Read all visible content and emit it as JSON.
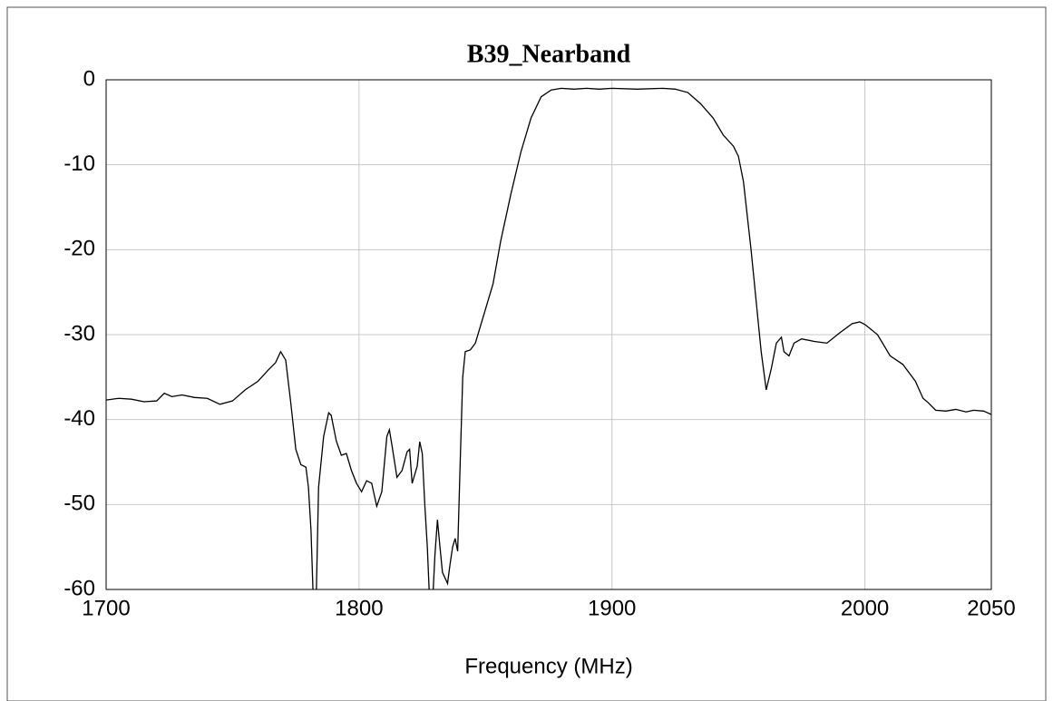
{
  "chart_data": {
    "type": "line",
    "title": "B39_Nearband",
    "x_label": "Frequency (MHz)",
    "xlim": [
      1700,
      2050
    ],
    "xticks": [
      1700,
      1800,
      1900,
      2000,
      2050
    ],
    "ylim": [
      -60,
      0
    ],
    "yticks": [
      0,
      -10,
      -20,
      -30,
      -40,
      -50,
      -60
    ],
    "grid": true,
    "x": [
      1700,
      1705,
      1710,
      1715,
      1720,
      1723,
      1726,
      1730,
      1735,
      1740,
      1745,
      1750,
      1755,
      1760,
      1764,
      1767,
      1769,
      1771,
      1773,
      1775,
      1777,
      1779,
      1780,
      1781,
      1782,
      1783,
      1784,
      1786,
      1788,
      1789,
      1791,
      1793,
      1795,
      1797,
      1799,
      1801,
      1803,
      1805,
      1807,
      1809,
      1811,
      1812,
      1813,
      1815,
      1817,
      1819,
      1820,
      1821,
      1823,
      1824,
      1825,
      1826,
      1827,
      1828,
      1829,
      1830,
      1831,
      1832,
      1833,
      1835,
      1836,
      1837,
      1838,
      1839,
      1840,
      1841,
      1842,
      1844,
      1846,
      1850,
      1853,
      1856,
      1860,
      1864,
      1868,
      1872,
      1876,
      1880,
      1885,
      1890,
      1895,
      1900,
      1910,
      1920,
      1925,
      1930,
      1935,
      1940,
      1944,
      1948,
      1950,
      1952,
      1955,
      1957,
      1959,
      1961,
      1963,
      1965,
      1967,
      1968,
      1970,
      1972,
      1975,
      1980,
      1985,
      1990,
      1995,
      1998,
      2000,
      2005,
      2010,
      2015,
      2020,
      2023,
      2025,
      2028,
      2032,
      2036,
      2040,
      2043,
      2047,
      2050
    ],
    "series": [
      {
        "name": "B39_Nearband",
        "color": "#000000",
        "values": [
          -37.7,
          -37.5,
          -37.6,
          -37.9,
          -37.8,
          -36.9,
          -37.3,
          -37.1,
          -37.4,
          -37.5,
          -38.2,
          -37.8,
          -36.5,
          -35.5,
          -34.2,
          -33.3,
          -32.0,
          -33,
          -38,
          -43.5,
          -45.3,
          -45.6,
          -48,
          -53,
          -62,
          -62,
          -48,
          -42,
          -39.2,
          -39.5,
          -42.5,
          -44.2,
          -44,
          -46,
          -47.5,
          -48.5,
          -47.2,
          -47.5,
          -50.2,
          -48.5,
          -42,
          -41.2,
          -43,
          -46.8,
          -46,
          -43.8,
          -43.5,
          -47.5,
          -45.5,
          -42.6,
          -44,
          -50,
          -55,
          -62,
          -62,
          -56,
          -51.8,
          -55,
          -58,
          -59.3,
          -57,
          -55,
          -54,
          -55.5,
          -45,
          -35,
          -32,
          -31.8,
          -31,
          -27,
          -24,
          -19,
          -13.5,
          -8.5,
          -4.5,
          -2.0,
          -1.2,
          -1.0,
          -1.1,
          -1.0,
          -1.1,
          -1.0,
          -1.1,
          -1.0,
          -1.1,
          -1.5,
          -2.8,
          -4.5,
          -6.5,
          -7.8,
          -9,
          -12,
          -20,
          -26,
          -32,
          -36.5,
          -34,
          -31,
          -30.3,
          -32,
          -32.5,
          -31,
          -30.5,
          -30.8,
          -31,
          -29.8,
          -28.7,
          -28.5,
          -28.8,
          -30,
          -32.5,
          -33.5,
          -35.5,
          -37.5,
          -38,
          -38.9,
          -39,
          -38.8,
          -39.1,
          -38.9,
          -39,
          -39.4
        ]
      }
    ]
  }
}
